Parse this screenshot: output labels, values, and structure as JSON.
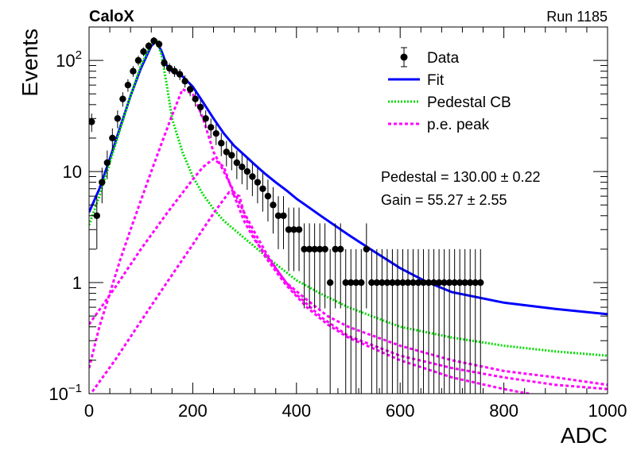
{
  "header": {
    "experiment": "CaloX",
    "run": "Run 1185"
  },
  "fit_results": {
    "pedestal": "Pedestal = 130.00 ± 0.22",
    "gain": "Gain = 55.27 ± 2.55"
  },
  "colors": {
    "data": "#000000",
    "fit": "#0000ff",
    "pedestal": "#00dd00",
    "pe": "#ff00ff"
  },
  "chart_data": {
    "type": "scatter",
    "title": "",
    "xlabel": "ADC",
    "ylabel": "Events",
    "xlim": [
      0,
      1000
    ],
    "ylim": [
      0.1,
      200
    ],
    "yscale": "log",
    "xticks": [
      0,
      200,
      400,
      600,
      800,
      1000
    ],
    "yticks": [
      {
        "value": 0.1,
        "base": "10",
        "exp": "−1"
      },
      {
        "value": 1,
        "label": "1"
      },
      {
        "value": 10,
        "label": "10"
      },
      {
        "value": 100,
        "base": "10",
        "exp": "2"
      }
    ],
    "legend": {
      "placement": "top-right",
      "entries": [
        {
          "name": "Data",
          "style": "marker"
        },
        {
          "name": "Fit",
          "style": "solid"
        },
        {
          "name": "Pedestal CB",
          "style": "dotted"
        },
        {
          "name": "p.e. peak",
          "style": "dashed"
        }
      ]
    },
    "series": [
      {
        "name": "Data",
        "type": "scatter",
        "x": [
          5,
          15,
          25,
          35,
          45,
          55,
          65,
          75,
          85,
          95,
          105,
          115,
          125,
          135,
          145,
          155,
          165,
          175,
          185,
          195,
          205,
          215,
          225,
          235,
          245,
          255,
          265,
          275,
          285,
          295,
          305,
          315,
          325,
          335,
          345,
          355,
          365,
          375,
          385,
          395,
          405,
          415,
          425,
          435,
          445,
          455,
          465,
          475,
          485,
          495,
          505,
          515,
          525,
          535,
          545,
          555,
          565,
          575,
          585,
          595,
          605,
          615,
          625,
          635,
          645,
          655,
          665,
          675,
          685,
          695,
          705,
          715,
          725,
          735,
          745,
          755
        ],
        "y": [
          28,
          4,
          8,
          12,
          20,
          30,
          45,
          60,
          80,
          100,
          120,
          135,
          150,
          140,
          95,
          85,
          80,
          75,
          65,
          55,
          45,
          38,
          30,
          25,
          22,
          18,
          15,
          14,
          12,
          11,
          10,
          9,
          8,
          7,
          6,
          5,
          4,
          4,
          3,
          3,
          3,
          2,
          2,
          2,
          2,
          2,
          1,
          2,
          2,
          1,
          1,
          1,
          1,
          2,
          1,
          1,
          1,
          1,
          1,
          1,
          1,
          1,
          1,
          1,
          1,
          1,
          1,
          1,
          1,
          1,
          1,
          1,
          1,
          1,
          1,
          1
        ]
      },
      {
        "name": "Fit",
        "type": "line",
        "x": [
          0,
          20,
          40,
          60,
          80,
          100,
          120,
          130,
          140,
          150,
          160,
          180,
          200,
          220,
          240,
          260,
          280,
          300,
          320,
          340,
          360,
          380,
          400,
          450,
          500,
          550,
          600,
          650,
          700,
          800,
          900,
          1000
        ],
        "y": [
          4.3,
          7,
          13,
          25,
          48,
          85,
          135,
          150,
          120,
          90,
          80,
          72,
          58,
          42,
          30,
          22,
          17,
          14,
          11.5,
          9.5,
          8,
          6.8,
          5.7,
          3.9,
          2.7,
          1.9,
          1.35,
          1.02,
          0.82,
          0.66,
          0.58,
          0.52
        ]
      },
      {
        "name": "Pedestal CB",
        "type": "line",
        "x": [
          0,
          20,
          40,
          60,
          80,
          100,
          120,
          130,
          140,
          150,
          160,
          180,
          200,
          220,
          240,
          260,
          280,
          300,
          350,
          400,
          450,
          500,
          600,
          700,
          800,
          900,
          1000
        ],
        "y": [
          3.3,
          6,
          12,
          24,
          48,
          90,
          140,
          155,
          110,
          60,
          30,
          15,
          9,
          6.2,
          4.6,
          3.6,
          3,
          2.5,
          1.6,
          1.05,
          0.78,
          0.6,
          0.4,
          0.32,
          0.27,
          0.24,
          0.22
        ]
      },
      {
        "name": "p.e. peak",
        "type": "line",
        "x": [
          0,
          20,
          40,
          60,
          80,
          100,
          120,
          140,
          160,
          180,
          200,
          220,
          240,
          260,
          280,
          300,
          320,
          340,
          360,
          380,
          400,
          450,
          500,
          600,
          700,
          800,
          900,
          1000
        ],
        "y": [
          0.17,
          0.4,
          0.8,
          1.6,
          3,
          5.5,
          10,
          18,
          32,
          55,
          50,
          30,
          15,
          10,
          6.5,
          4.2,
          2.8,
          1.9,
          1.35,
          1.0,
          0.78,
          0.48,
          0.33,
          0.22,
          0.17,
          0.14,
          0.12,
          0.11
        ]
      },
      {
        "name": "p.e. peak",
        "type": "line",
        "x": [
          0,
          50,
          100,
          150,
          200,
          220,
          240,
          260,
          280,
          300,
          320,
          340,
          380,
          420,
          460,
          500,
          600,
          700,
          800,
          900,
          1000
        ],
        "y": [
          0.42,
          0.9,
          2,
          4.2,
          8.5,
          11,
          13,
          11,
          6,
          3.5,
          2.4,
          1.8,
          1.0,
          0.7,
          0.5,
          0.4,
          0.27,
          0.2,
          0.16,
          0.14,
          0.12
        ]
      },
      {
        "name": "p.e. peak",
        "type": "line",
        "x": [
          0,
          50,
          100,
          150,
          200,
          240,
          270,
          290,
          300,
          320,
          340,
          380,
          420,
          460,
          500,
          600,
          700,
          800,
          900,
          1000
        ],
        "y": [
          0.095,
          0.2,
          0.45,
          1.0,
          2.2,
          4.2,
          6.5,
          6,
          4,
          2.5,
          1.7,
          0.95,
          0.6,
          0.42,
          0.32,
          0.2,
          0.14,
          0.11,
          0.09,
          0.08
        ]
      }
    ]
  }
}
